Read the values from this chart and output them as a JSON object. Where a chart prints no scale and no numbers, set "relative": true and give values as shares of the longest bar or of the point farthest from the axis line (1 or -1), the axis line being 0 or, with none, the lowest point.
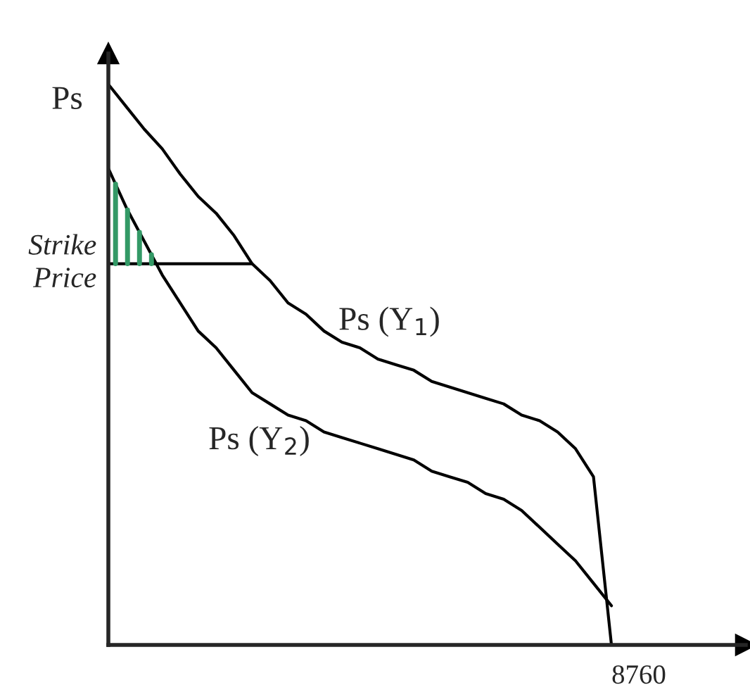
{
  "chart_data": {
    "type": "line",
    "relative": true,
    "ylabel": "Ps",
    "marker": "none",
    "line_style": "solid",
    "annotations": [
      "8760"
    ],
    "categories": [
      null,
      null,
      null,
      null,
      null,
      null,
      null,
      null,
      null,
      null,
      null,
      null,
      null,
      null,
      null,
      null,
      null,
      null,
      null,
      null,
      null,
      null,
      null,
      null,
      null,
      null,
      null,
      null,
      null
    ],
    "series": [
      {
        "name": "Ps (Y$_{1}$)",
        "color": "#000000",
        "values": [
          1,
          0.96,
          0.92,
          0.885,
          0.84,
          0.8,
          0.77,
          0.73,
          0.68,
          0.65,
          0.61,
          0.59,
          0.56,
          0.54,
          0.53,
          0.51,
          0.5,
          0.49,
          0.47,
          0.46,
          0.45,
          0.44,
          0.43,
          0.41,
          0.4,
          0.38,
          0.35,
          0.3,
          0
        ]
      },
      {
        "name": "Ps (Y$_{2}$)",
        "color": "#000000",
        "values": [
          0.85,
          0.78,
          0.72,
          0.66,
          0.61,
          0.56,
          0.53,
          0.49,
          0.45,
          0.43,
          0.41,
          0.4,
          0.38,
          0.37,
          0.36,
          0.35,
          0.34,
          0.33,
          0.31,
          0.3,
          0.29,
          0.27,
          0.26,
          0.24,
          0.21,
          0.18,
          0.15,
          0.11,
          0.07
        ]
      },
      {
        "name": "Strike Price",
        "color": "#000000",
        "values": [
          0.68,
          0.68,
          0.68,
          0.68,
          0.68,
          0.68,
          0.68,
          0.68,
          0.68,
          null,
          null,
          null,
          null,
          null,
          null,
          null,
          null,
          null,
          null,
          null,
          null,
          null,
          null,
          null,
          null,
          null,
          null,
          null,
          null
        ]
      }
    ]
  }
}
